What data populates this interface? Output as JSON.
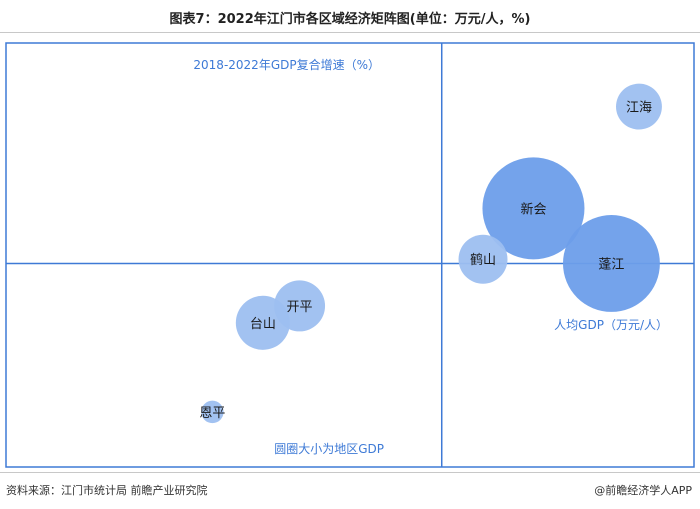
{
  "title": "图表7：2022年江门市各区域经济矩阵图(单位：万元/人，%)",
  "footer": {
    "source": "资料来源：江门市统计局 前瞻产业研究院",
    "app": "@前瞻经济学人APP"
  },
  "chart_data": {
    "type": "scatter",
    "xlabel": "人均GDP（万元/人）",
    "ylabel": "2018-2022年GDP复合增速（%）",
    "size_label": "圆圈大小为地区GDP",
    "grid": false,
    "points": [
      {
        "name": "江海",
        "x": 13.8,
        "y": 8.5,
        "size": 0.45
      },
      {
        "name": "新会",
        "x": 11.5,
        "y": 6.1,
        "size": 1.0
      },
      {
        "name": "蓬江",
        "x": 13.2,
        "y": 4.8,
        "size": 0.95
      },
      {
        "name": "鹤山",
        "x": 10.4,
        "y": 4.9,
        "size": 0.48
      },
      {
        "name": "开平",
        "x": 6.4,
        "y": 3.8,
        "size": 0.5
      },
      {
        "name": "台山",
        "x": 5.6,
        "y": 3.4,
        "size": 0.53
      },
      {
        "name": "恩平",
        "x": 4.5,
        "y": 1.3,
        "size": 0.22
      }
    ],
    "xlim": [
      0,
      15
    ],
    "ylim": [
      0,
      10
    ],
    "x_divider": 9.5,
    "y_divider": 4.8,
    "colors": {
      "bubble_fill": "#6d9eea",
      "bubble_fill_light": "#9dbff0",
      "frame": "#3e7ad6",
      "label": "#3e7ad6"
    }
  }
}
